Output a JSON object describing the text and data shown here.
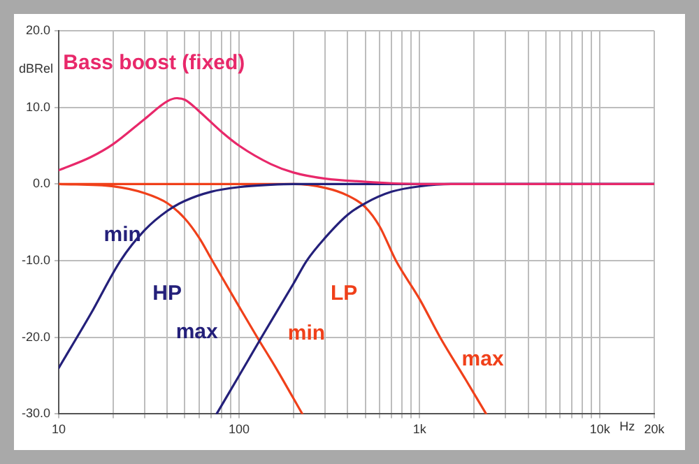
{
  "chart_data": {
    "type": "line",
    "xlabel": "Hz",
    "ylabel": "dBRel",
    "log": "x",
    "grid": true,
    "legend": false,
    "marker": "none",
    "line_style": "solid",
    "xlim": [
      10,
      20000
    ],
    "ylim": [
      -30,
      20
    ],
    "xticks": [
      {
        "value": 10,
        "label": "10"
      },
      {
        "value": 20,
        "label": null
      },
      {
        "value": 30,
        "label": null
      },
      {
        "value": 40,
        "label": null
      },
      {
        "value": 50,
        "label": null
      },
      {
        "value": 60,
        "label": null
      },
      {
        "value": 70,
        "label": null
      },
      {
        "value": 80,
        "label": null
      },
      {
        "value": 90,
        "label": null
      },
      {
        "value": 100,
        "label": "100"
      },
      {
        "value": 200,
        "label": null
      },
      {
        "value": 300,
        "label": null
      },
      {
        "value": 400,
        "label": null
      },
      {
        "value": 500,
        "label": null
      },
      {
        "value": 600,
        "label": null
      },
      {
        "value": 700,
        "label": null
      },
      {
        "value": 800,
        "label": null
      },
      {
        "value": 900,
        "label": null
      },
      {
        "value": 1000,
        "label": "1k"
      },
      {
        "value": 2000,
        "label": null
      },
      {
        "value": 3000,
        "label": null
      },
      {
        "value": 4000,
        "label": null
      },
      {
        "value": 5000,
        "label": null
      },
      {
        "value": 6000,
        "label": null
      },
      {
        "value": 7000,
        "label": null
      },
      {
        "value": 8000,
        "label": null
      },
      {
        "value": 9000,
        "label": null
      },
      {
        "value": 10000,
        "label": "10k"
      },
      {
        "value": 20000,
        "label": "20k"
      }
    ],
    "yticks": [
      {
        "value": -30,
        "label": "-30.0"
      },
      {
        "value": -20,
        "label": "-20.0"
      },
      {
        "value": -10,
        "label": "-10.0"
      },
      {
        "value": 0,
        "label": "0.0"
      },
      {
        "value": 10,
        "label": "10.0"
      },
      {
        "value": 20,
        "label": "20.0"
      }
    ],
    "series": [
      {
        "color": "#e8286a",
        "x": [
          10,
          15,
          20,
          30,
          40,
          45,
          50,
          60,
          80,
          100,
          150,
          200,
          300,
          500,
          700,
          1000,
          20000
        ],
        "values": [
          1.8,
          3.5,
          5.2,
          8.5,
          10.8,
          11.2,
          11,
          9.5,
          6.8,
          5,
          2.6,
          1.5,
          0.7,
          0.3,
          0.1,
          0,
          0
        ]
      },
      {
        "color": "#24207a",
        "x": [
          10,
          15,
          22,
          30,
          40,
          50,
          70,
          100,
          150,
          200,
          20000
        ],
        "values": [
          -24,
          -17,
          -10,
          -6,
          -3.5,
          -2.2,
          -1,
          -0.4,
          -0.1,
          0,
          0
        ]
      },
      {
        "color": "#24207a",
        "x": [
          75,
          100,
          133,
          200,
          237,
          300,
          400,
          500,
          700,
          1000,
          1500,
          20000
        ],
        "values": [
          -30,
          -25,
          -20,
          -13,
          -10,
          -7,
          -4,
          -2.5,
          -1,
          -0.3,
          0,
          0
        ]
      },
      {
        "color": "#f0401a",
        "x": [
          10,
          20,
          30,
          40,
          50,
          60,
          71,
          100,
          126,
          160,
          224
        ],
        "values": [
          0,
          -0.3,
          -1.2,
          -2.5,
          -4.5,
          -7,
          -10,
          -16,
          -20,
          -24,
          -30
        ]
      },
      {
        "color": "#f0401a",
        "x": [
          10,
          200,
          300,
          400,
          500,
          600,
          740,
          1000,
          1300,
          1800,
          2340
        ],
        "values": [
          0,
          0,
          -0.5,
          -1.5,
          -3,
          -5.5,
          -10,
          -15,
          -20,
          -25.5,
          -30
        ]
      }
    ],
    "annotations": [
      "Bass boost (fixed)",
      "min",
      "HP",
      "max",
      "LP",
      "min",
      "max"
    ]
  }
}
